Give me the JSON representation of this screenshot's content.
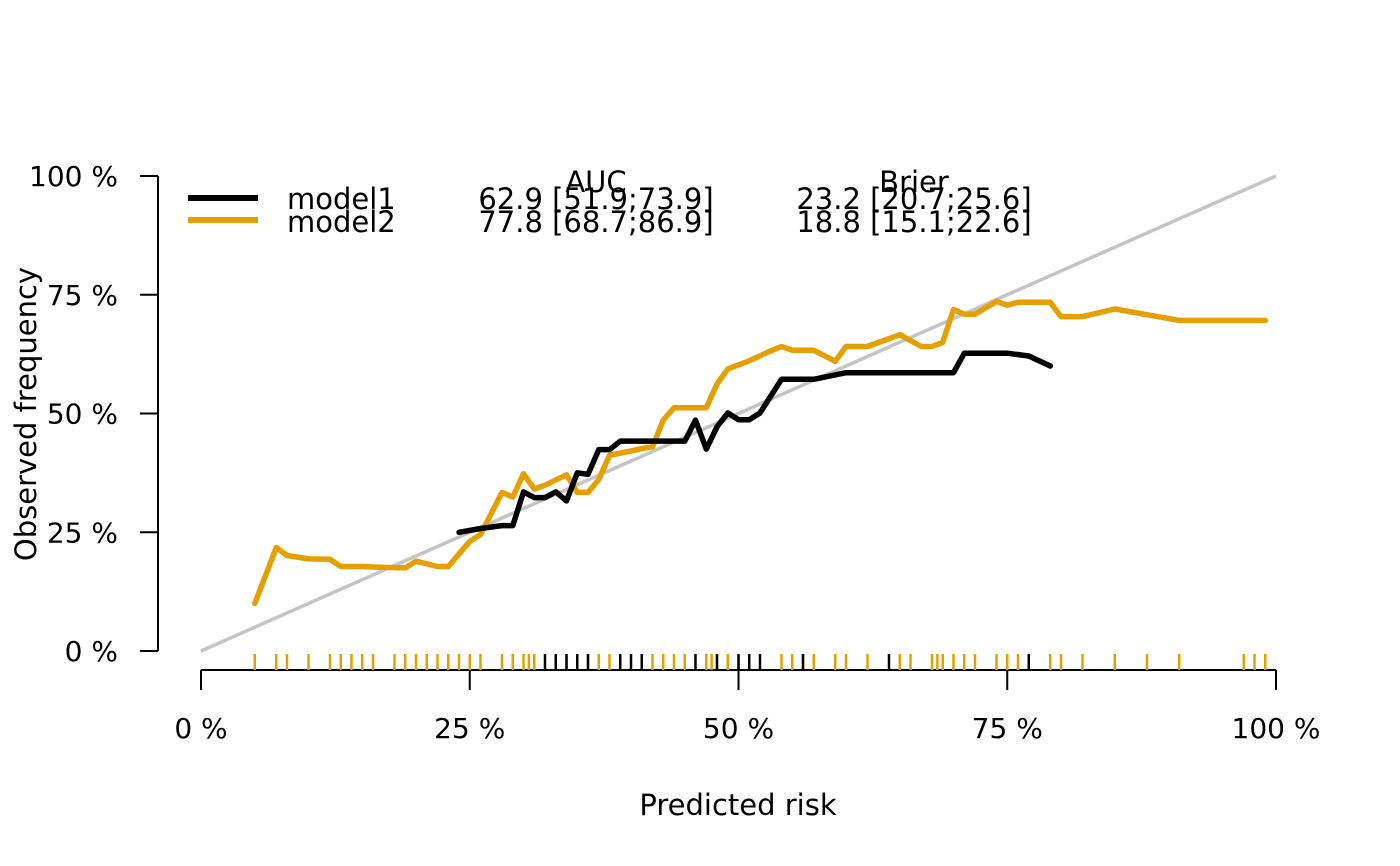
{
  "chart_data": {
    "type": "line",
    "title": "",
    "xlabel": "Predicted risk",
    "ylabel": "Observed frequency",
    "xlim": [
      0,
      100
    ],
    "ylim": [
      0,
      100
    ],
    "x_ticks": [
      "0 %",
      "25 %",
      "50 %",
      "75 %",
      "100 %"
    ],
    "y_ticks": [
      "0 %",
      "25 %",
      "50 %",
      "75 %",
      "100 %"
    ],
    "x_tick_values": [
      0,
      25,
      50,
      75,
      100
    ],
    "y_tick_values": [
      0,
      25,
      50,
      75,
      100
    ],
    "grid": false,
    "legend_position": "top-left",
    "legend": {
      "col_headers": {
        "auc": "AUC",
        "brier": "Brier"
      },
      "rows": [
        {
          "name": "model1",
          "auc": "62.9 [51.9;73.9]",
          "brier": "23.2 [20.7;25.6]"
        },
        {
          "name": "model2",
          "auc": "77.8 [68.7;86.9]",
          "brier": "18.8 [15.1;22.6]"
        }
      ]
    },
    "reference_line": {
      "x": [
        0,
        100
      ],
      "y": [
        0,
        100
      ],
      "color": "#c4c4c4"
    },
    "series": [
      {
        "name": "model1",
        "color": "#000000",
        "x": [
          24,
          26,
          28,
          29,
          30,
          31,
          32,
          33,
          34,
          35,
          36,
          37,
          38,
          39,
          40,
          42,
          43,
          45,
          46,
          47,
          48,
          49,
          50,
          51,
          52,
          54,
          55,
          57,
          60,
          62,
          65,
          68,
          70,
          71,
          73,
          75,
          77,
          79
        ],
        "y": [
          25,
          25.8,
          26.4,
          26.4,
          33.5,
          32.3,
          32.3,
          33.5,
          31.6,
          37.5,
          37.2,
          42.4,
          42.4,
          44.2,
          44.2,
          44.2,
          44.2,
          44.2,
          48.6,
          42.5,
          47.2,
          50.1,
          48.7,
          48.7,
          50.1,
          57.2,
          57.2,
          57.2,
          58.6,
          58.6,
          58.6,
          58.6,
          58.6,
          62.7,
          62.7,
          62.7,
          62.1,
          60
        ]
      },
      {
        "name": "model2",
        "color": "#e69f00",
        "x": [
          5,
          7,
          8,
          10,
          12,
          13,
          15,
          17,
          19,
          20,
          22,
          23,
          25,
          26,
          28,
          29,
          30,
          31,
          32,
          34,
          35,
          36,
          37,
          38,
          40,
          41,
          42,
          43,
          44,
          47,
          48,
          49,
          51,
          53,
          54,
          55,
          57,
          59,
          60,
          62,
          65,
          67,
          68,
          69,
          70,
          71,
          72,
          74,
          75,
          76,
          79,
          80,
          82,
          85,
          88,
          91,
          93,
          95,
          97,
          99
        ],
        "y": [
          10,
          21.8,
          20.1,
          19.4,
          19.3,
          17.8,
          17.8,
          17.6,
          17.5,
          18.9,
          17.8,
          17.8,
          23.1,
          24.5,
          33.4,
          32.4,
          37.3,
          34.1,
          34.9,
          37.1,
          33.4,
          33.4,
          36.1,
          41.2,
          42.1,
          42.6,
          43.0,
          48.6,
          51.2,
          51.2,
          56.2,
          59.4,
          61.1,
          63.2,
          64.1,
          63.3,
          63.3,
          61.0,
          64.1,
          64.1,
          66.6,
          64.1,
          64.1,
          65.0,
          71.9,
          70.9,
          70.9,
          73.6,
          72.8,
          73.4,
          73.4,
          70.4,
          70.4,
          72.0,
          70.8,
          69.6,
          69.6,
          69.6,
          69.6,
          69.6
        ]
      }
    ],
    "rug": {
      "model1": [
        32,
        33,
        34,
        35,
        36,
        39,
        40,
        41,
        46,
        48,
        50,
        51,
        52,
        56,
        64,
        77
      ],
      "model2": [
        5,
        7,
        8,
        10,
        12,
        13,
        14,
        15,
        16,
        18,
        19,
        20,
        21,
        22,
        23,
        24,
        25,
        26,
        28,
        29,
        30,
        30.5,
        31,
        33,
        34,
        35,
        36,
        37,
        38,
        41,
        42,
        43,
        44,
        45,
        47,
        47.5,
        48,
        49,
        50,
        54,
        55,
        56,
        57,
        59,
        60,
        62,
        65,
        66,
        68,
        68.5,
        69,
        70,
        71,
        72,
        74,
        75,
        76,
        77,
        79,
        80,
        82,
        85,
        88,
        91,
        97,
        98,
        99
      ]
    }
  }
}
